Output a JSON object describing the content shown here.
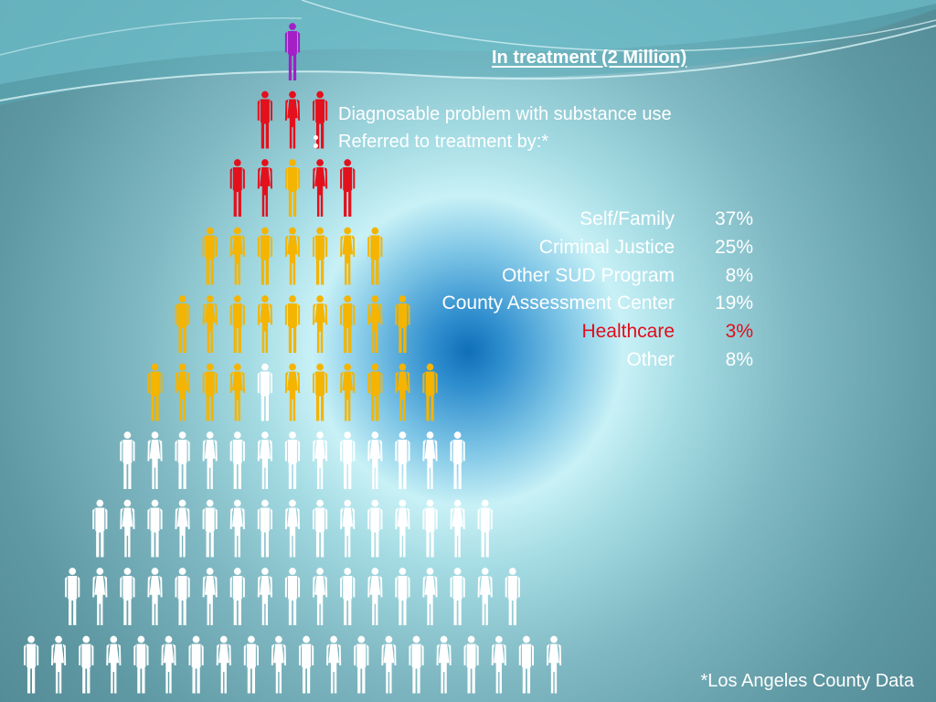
{
  "slide": {
    "title": "In treatment (2 Million)",
    "description_line1": "Diagnosable problem with substance use",
    "description_line2": "Referred to treatment by:*",
    "referrals": [
      {
        "label": "Self/Family",
        "percent": "37%",
        "highlight": false
      },
      {
        "label": "Criminal Justice",
        "percent": "25%",
        "highlight": false
      },
      {
        "label": "Other SUD Program",
        "percent": "8%",
        "highlight": false
      },
      {
        "label": "County Assessment Center",
        "percent": "19%",
        "highlight": false
      },
      {
        "label": "Healthcare",
        "percent": "3%",
        "highlight": true
      },
      {
        "label": "Other",
        "percent": "8%",
        "highlight": false
      }
    ],
    "footnote": "*Los Angeles County Data"
  },
  "colors": {
    "purple": "#a31fc6",
    "red": "#e4101c",
    "orange": "#f4b400",
    "white": "#ffffff",
    "highlight_text": "#e00d1a"
  },
  "pyramid": {
    "rows": [
      {
        "figures": [
          "purple"
        ]
      },
      {
        "figures": [
          "red",
          "red",
          "red"
        ]
      },
      {
        "figures": [
          "red",
          "red",
          "orange",
          "red",
          "red"
        ]
      },
      {
        "figures": [
          "orange",
          "orange",
          "orange",
          "orange",
          "orange",
          "orange",
          "orange"
        ]
      },
      {
        "figures": [
          "orange",
          "orange",
          "orange",
          "orange",
          "orange",
          "orange",
          "orange",
          "orange",
          "orange"
        ]
      },
      {
        "figures": [
          "orange",
          "orange",
          "orange",
          "orange",
          "white",
          "orange",
          "orange",
          "orange",
          "orange",
          "orange",
          "orange"
        ]
      },
      {
        "figures": [
          "white",
          "white",
          "white",
          "white",
          "white",
          "white",
          "white",
          "white",
          "white",
          "white",
          "white",
          "white",
          "white"
        ]
      },
      {
        "figures": [
          "white",
          "white",
          "white",
          "white",
          "white",
          "white",
          "white",
          "white",
          "white",
          "white",
          "white",
          "white",
          "white",
          "white",
          "white"
        ]
      },
      {
        "figures": [
          "white",
          "white",
          "white",
          "white",
          "white",
          "white",
          "white",
          "white",
          "white",
          "white",
          "white",
          "white",
          "white",
          "white",
          "white",
          "white",
          "white"
        ]
      },
      {
        "figures": [
          "white",
          "white",
          "white",
          "white",
          "white",
          "white",
          "white",
          "white",
          "white",
          "white",
          "white",
          "white",
          "white",
          "white",
          "white",
          "white",
          "white",
          "white",
          "white",
          "white"
        ]
      }
    ]
  }
}
